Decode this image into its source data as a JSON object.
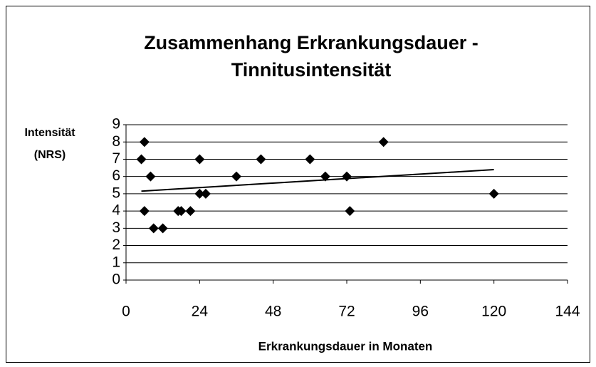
{
  "chart_data": {
    "type": "scatter",
    "title": [
      "Zusammenhang Erkrankungsdauer -",
      "Tinnitusintensität"
    ],
    "xlabel": "Erkrankungsdauer in Monaten",
    "ylabel": [
      "Intensität",
      "(NRS)"
    ],
    "x": [
      5,
      6,
      6,
      8,
      9,
      12,
      17,
      18,
      21,
      24,
      24,
      26,
      36,
      44,
      60,
      65,
      72,
      73,
      84,
      120
    ],
    "values": [
      7,
      8,
      4,
      6,
      3,
      3,
      4,
      4,
      4,
      7,
      5,
      5,
      6,
      7,
      7,
      6,
      6,
      4,
      8,
      5
    ],
    "color": "#000000",
    "trendline": {
      "x": [
        5,
        120
      ],
      "values": [
        5.15,
        6.4
      ]
    },
    "xlim": [
      0,
      144
    ],
    "xticks": [
      0,
      24,
      48,
      72,
      96,
      120,
      144
    ],
    "ylim": [
      0,
      9
    ],
    "yticks": [
      0,
      1,
      2,
      3,
      4,
      5,
      6,
      7,
      8,
      9
    ],
    "grid": true
  }
}
